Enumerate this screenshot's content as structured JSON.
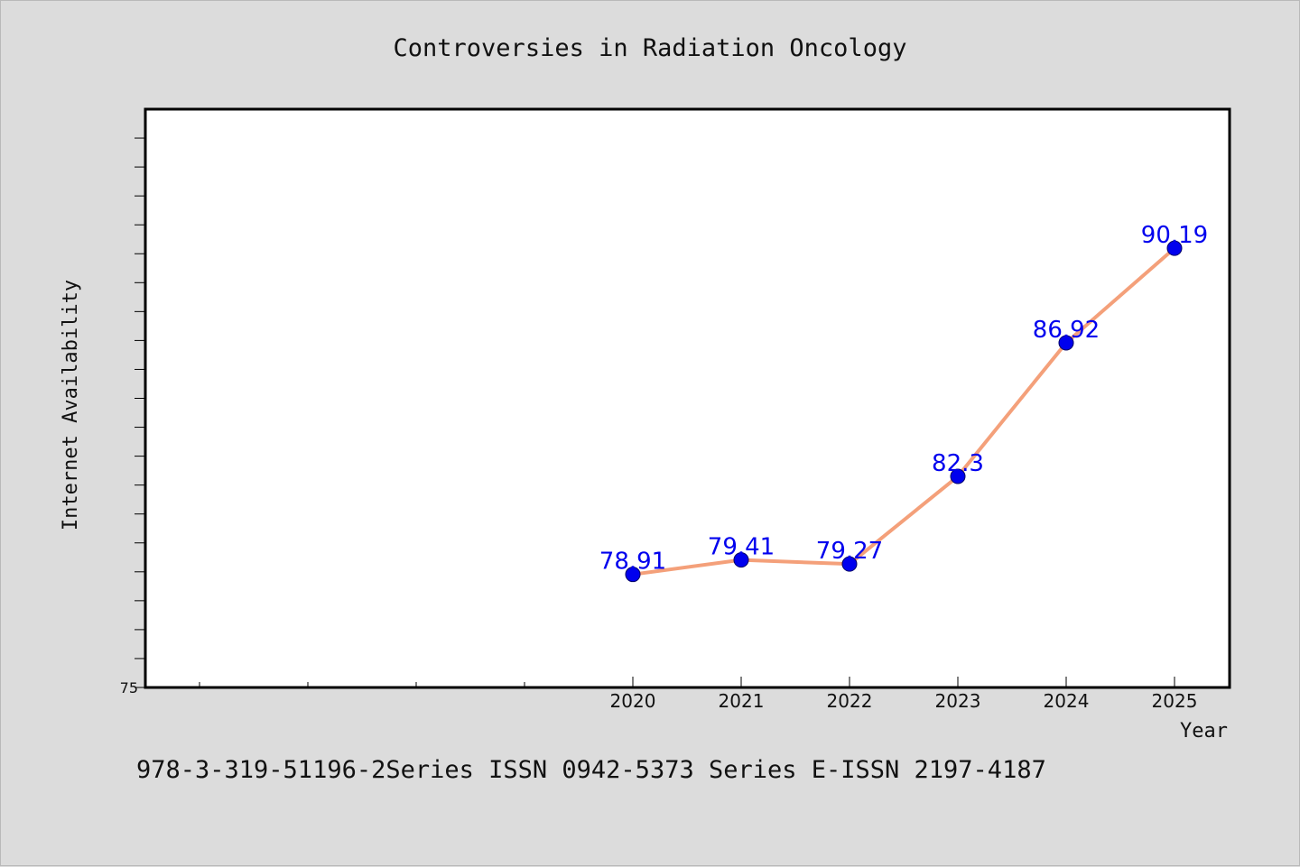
{
  "chart_data": {
    "type": "line",
    "title": "Controversies in Radiation Oncology",
    "xlabel": "Year",
    "ylabel": "Internet Availability",
    "categories": [
      "2020",
      "2021",
      "2022",
      "2023",
      "2024",
      "2025"
    ],
    "series": [
      {
        "name": "",
        "values": [
          78.91,
          79.41,
          79.27,
          82.3,
          86.92,
          90.19
        ],
        "value_labels": [
          "78.91",
          "79.41",
          "79.27",
          "82.3",
          "86.92",
          "90.19"
        ],
        "line_color": "#f4a07a",
        "marker_color": "#0000ee",
        "label_color": "#0000ee"
      }
    ],
    "y_tick_labels": [
      {
        "value": 75,
        "label": "75"
      }
    ],
    "ylim": [
      75,
      95
    ],
    "grid": false,
    "legend": "none"
  },
  "footer": {
    "text": "978-3-319-51196-2Series ISSN 0942-5373 Series E-ISSN 2197-4187"
  },
  "colors": {
    "background": "#dcdcdc",
    "plot_background": "#ffffff",
    "axis": "#000000"
  }
}
